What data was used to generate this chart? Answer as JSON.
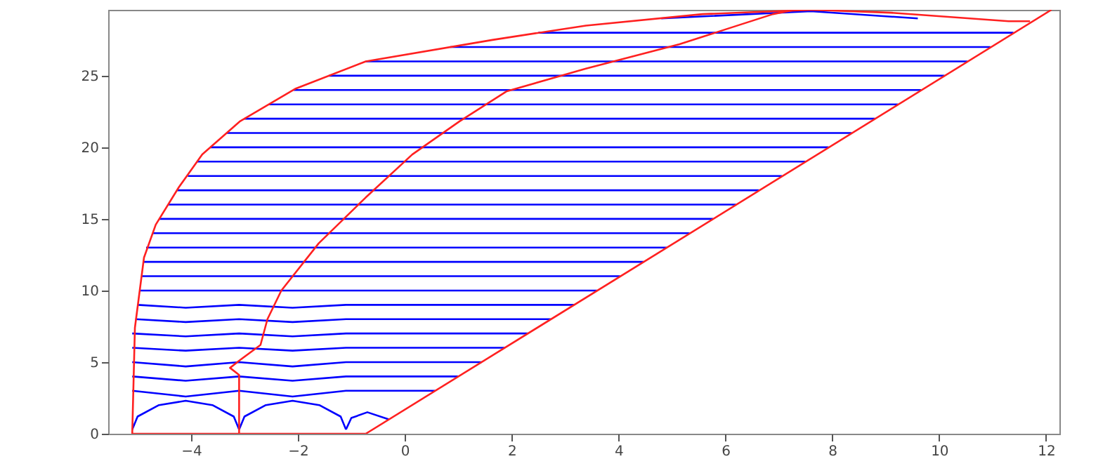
{
  "chart_data": {
    "type": "line",
    "xlim": [
      -5.55,
      12.25
    ],
    "ylim": [
      0,
      29.6
    ],
    "xticks": [
      -4,
      -2,
      0,
      2,
      4,
      6,
      8,
      10,
      12
    ],
    "yticks": [
      0,
      5,
      10,
      15,
      20,
      25
    ],
    "series": [
      {
        "color": "#0000ff",
        "x": [
          -5.1,
          -5.0,
          -4.6,
          -4.1,
          -3.6,
          -3.2,
          -3.1
        ],
        "values": [
          0.3,
          1.2,
          2.0,
          2.3,
          2.0,
          1.2,
          0.3
        ]
      },
      {
        "color": "#0000ff",
        "x": [
          -3.1,
          -3.0,
          -2.6,
          -2.1,
          -1.6,
          -1.2,
          -1.1
        ],
        "values": [
          0.3,
          1.2,
          2.0,
          2.3,
          2.0,
          1.2,
          0.3
        ]
      },
      {
        "color": "#0000ff",
        "x": [
          -1.1,
          -1.0,
          -0.7,
          -0.3
        ],
        "values": [
          0.3,
          1.1,
          1.5,
          1.0
        ]
      },
      {
        "color": "#0000ff",
        "x": [
          -5.1,
          -4.1,
          -3.1,
          -2.1,
          -1.1,
          0.57
        ],
        "values": [
          3,
          2.6,
          3,
          2.6,
          3,
          3
        ]
      },
      {
        "color": "#0000ff",
        "x": [
          -5.1,
          -4.1,
          -3.1,
          -2.1,
          -1.1,
          1.0
        ],
        "values": [
          4,
          3.7,
          4,
          3.7,
          4,
          4
        ]
      },
      {
        "color": "#0000ff",
        "x": [
          -5.1,
          -4.1,
          -3.1,
          -2.1,
          -1.1,
          1.44
        ],
        "values": [
          5,
          4.7,
          5,
          4.7,
          5,
          5
        ]
      },
      {
        "color": "#0000ff",
        "x": [
          -5.1,
          -4.1,
          -3.1,
          -2.1,
          -1.1,
          1.87
        ],
        "values": [
          6,
          5.8,
          6,
          5.8,
          6,
          6
        ]
      },
      {
        "color": "#0000ff",
        "x": [
          -5.1,
          -4.1,
          -3.1,
          -2.1,
          -1.1,
          2.3
        ],
        "values": [
          7,
          6.8,
          7,
          6.8,
          7,
          7
        ]
      },
      {
        "color": "#0000ff",
        "x": [
          -5.04,
          -4.1,
          -3.1,
          -2.1,
          -1.1,
          2.73
        ],
        "values": [
          8,
          7.8,
          8,
          7.8,
          8,
          8
        ]
      },
      {
        "color": "#0000ff",
        "x": [
          -5.0,
          -4.1,
          -3.1,
          -2.1,
          -1.1,
          3.17
        ],
        "values": [
          9,
          8.8,
          9,
          8.8,
          9,
          9
        ]
      },
      {
        "color": "#0000ff",
        "x": [
          -4.95,
          3.6
        ],
        "values": [
          10,
          10
        ]
      },
      {
        "color": "#0000ff",
        "x": [
          -4.92,
          4.03
        ],
        "values": [
          11,
          11
        ]
      },
      {
        "color": "#0000ff",
        "x": [
          -4.89,
          4.47
        ],
        "values": [
          12,
          12
        ]
      },
      {
        "color": "#0000ff",
        "x": [
          -4.84,
          4.9
        ],
        "values": [
          13,
          13
        ]
      },
      {
        "color": "#0000ff",
        "x": [
          -4.72,
          5.33
        ],
        "values": [
          14,
          14
        ]
      },
      {
        "color": "#0000ff",
        "x": [
          -4.6,
          5.77
        ],
        "values": [
          15,
          15
        ]
      },
      {
        "color": "#0000ff",
        "x": [
          -4.43,
          6.2
        ],
        "values": [
          16,
          16
        ]
      },
      {
        "color": "#0000ff",
        "x": [
          -4.26,
          6.63
        ],
        "values": [
          17,
          17
        ]
      },
      {
        "color": "#0000ff",
        "x": [
          -4.06,
          7.06
        ],
        "values": [
          18,
          18
        ]
      },
      {
        "color": "#0000ff",
        "x": [
          -3.89,
          7.5
        ],
        "values": [
          19,
          19
        ]
      },
      {
        "color": "#0000ff",
        "x": [
          -3.64,
          7.93
        ],
        "values": [
          20,
          20
        ]
      },
      {
        "color": "#0000ff",
        "x": [
          -3.33,
          8.36
        ],
        "values": [
          21,
          21
        ]
      },
      {
        "color": "#0000ff",
        "x": [
          -3.0,
          8.8
        ],
        "values": [
          22,
          22
        ]
      },
      {
        "color": "#0000ff",
        "x": [
          -2.54,
          9.23
        ],
        "values": [
          23,
          23
        ]
      },
      {
        "color": "#0000ff",
        "x": [
          -2.08,
          9.66
        ],
        "values": [
          24,
          24
        ]
      },
      {
        "color": "#0000ff",
        "x": [
          -1.42,
          10.1
        ],
        "values": [
          25,
          25
        ]
      },
      {
        "color": "#0000ff",
        "x": [
          -0.73,
          10.53
        ],
        "values": [
          26,
          26
        ]
      },
      {
        "color": "#0000ff",
        "x": [
          0.85,
          10.96
        ],
        "values": [
          27,
          27
        ]
      },
      {
        "color": "#0000ff",
        "x": [
          2.5,
          11.39
        ],
        "values": [
          28,
          28
        ]
      },
      {
        "color": "#0000ff",
        "x": [
          4.8,
          7.6,
          9.6
        ],
        "values": [
          29,
          29.5,
          29
        ]
      },
      {
        "color": "#ff2020",
        "x": [
          -5.1,
          -5.05,
          -4.88,
          -4.66,
          -4.23,
          -3.79,
          -3.09,
          -2.04,
          -0.73,
          1.64,
          3.39,
          5.57,
          7.63,
          9.1,
          11.3,
          11.7
        ],
        "values": [
          0,
          7.4,
          12.3,
          14.6,
          17.2,
          19.5,
          21.8,
          24.1,
          26.0,
          27.5,
          28.5,
          29.3,
          29.6,
          29.4,
          28.8,
          28.8
        ]
      },
      {
        "color": "#ff2020",
        "x": [
          -3.1,
          -3.1,
          -3.27,
          -3.1,
          -2.7,
          -2.57,
          -2.31,
          -1.61,
          -0.73,
          0.14,
          1.02,
          1.9,
          3.39,
          5.14,
          6.89,
          7.3
        ],
        "values": [
          0,
          4.1,
          4.6,
          5.1,
          6.2,
          8.0,
          10.0,
          13.3,
          16.5,
          19.5,
          21.8,
          23.9,
          25.5,
          27.2,
          29.3,
          29.6
        ]
      },
      {
        "color": "#ff2020",
        "x": [
          -0.73,
          12.1
        ],
        "values": [
          0,
          29.6
        ]
      },
      {
        "color": "#ff2020",
        "x": [
          -5.1,
          -0.73
        ],
        "values": [
          0,
          0
        ]
      }
    ]
  }
}
